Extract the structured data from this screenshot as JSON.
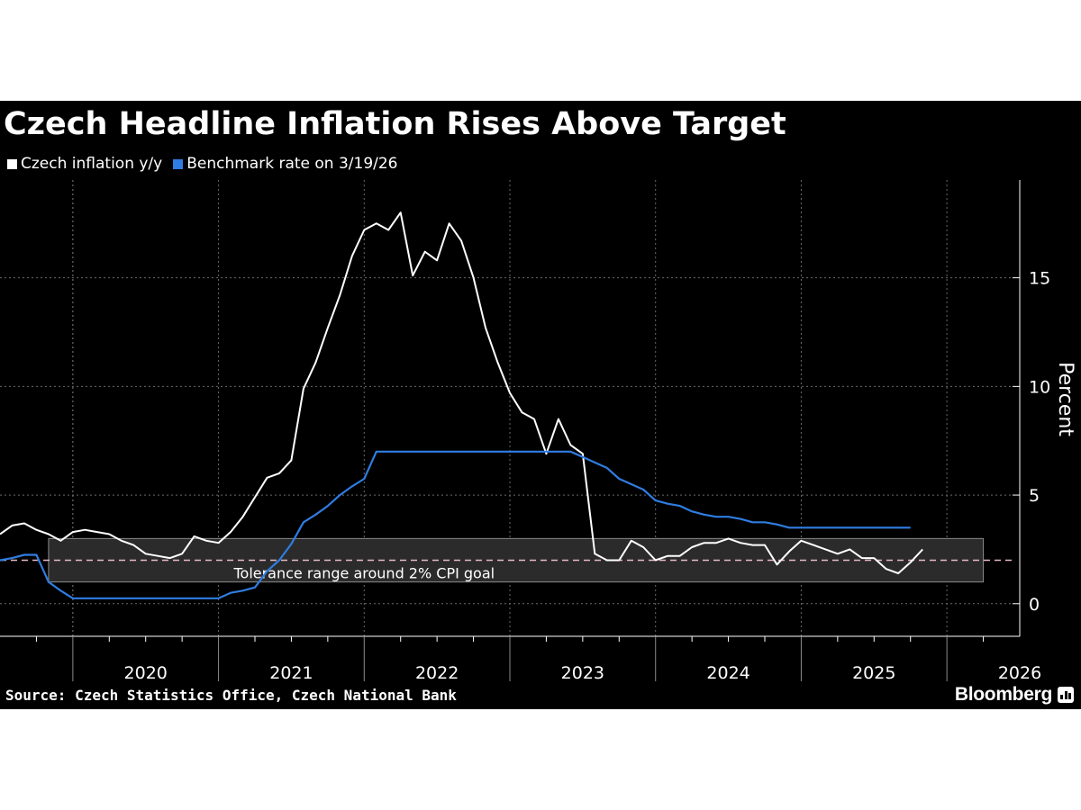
{
  "header": {
    "title": "Czech Headline Inflation Rises Above Target"
  },
  "footer": {
    "source": "Source: Czech Statistics Office, Czech National Bank",
    "brand": "Bloomberg",
    "brand_icon": "bloomberg-chart-icon"
  },
  "colors": {
    "background": "#000000",
    "inflation": "#ffffff",
    "benchmark": "#2f7de1",
    "band_fill": "#2b2b2b",
    "band_border": "#8a8a8a",
    "target_line": "#e6b8c4",
    "grid": "#6a6a6a"
  },
  "chart_data": {
    "type": "line",
    "title": "Czech Headline Inflation Rises Above Target",
    "ylabel": "Percent",
    "xlabel": "",
    "ylim": [
      -1.5,
      19.5
    ],
    "xlim": [
      "2019-07",
      "2026-07"
    ],
    "y_ticks": [
      0,
      5,
      10,
      15
    ],
    "x_tick_labels": [
      "2020",
      "2021",
      "2022",
      "2023",
      "2024",
      "2025",
      "2026"
    ],
    "grid": true,
    "legend_position": "top-left",
    "series": [
      {
        "name": "Czech inflation y/y",
        "start": "2019-07",
        "frequency": "monthly",
        "values": [
          3.2,
          3.6,
          3.7,
          3.4,
          3.2,
          2.9,
          3.3,
          3.4,
          3.3,
          3.2,
          2.9,
          2.7,
          2.3,
          2.2,
          2.1,
          2.3,
          3.1,
          2.9,
          2.8,
          3.3,
          4.0,
          4.9,
          5.8,
          6.0,
          6.6,
          9.9,
          11.1,
          12.7,
          14.2,
          16.0,
          17.2,
          17.5,
          17.2,
          18.0,
          15.1,
          16.2,
          15.8,
          17.5,
          16.7,
          15.0,
          12.7,
          11.1,
          9.7,
          8.8,
          8.5,
          6.9,
          8.5,
          7.3,
          6.9,
          2.3,
          2.0,
          2.0,
          2.9,
          2.6,
          2.0,
          2.2,
          2.2,
          2.6,
          2.8,
          2.8,
          3.0,
          2.8,
          2.7,
          2.7,
          1.8,
          2.4,
          2.9,
          2.7,
          2.5,
          2.3,
          2.5,
          2.1,
          2.1,
          1.6,
          1.4,
          1.9,
          2.5
        ]
      },
      {
        "name": "Benchmark rate on 3/19/26",
        "start": "2019-07",
        "frequency": "monthly",
        "values": [
          2.0,
          2.1,
          2.25,
          2.25,
          1.0,
          0.6,
          0.25,
          0.25,
          0.25,
          0.25,
          0.25,
          0.25,
          0.25,
          0.25,
          0.25,
          0.25,
          0.25,
          0.25,
          0.25,
          0.5,
          0.6,
          0.75,
          1.5,
          2.0,
          2.75,
          3.75,
          4.1,
          4.5,
          5.0,
          5.4,
          5.75,
          7.0,
          7.0,
          7.0,
          7.0,
          7.0,
          7.0,
          7.0,
          7.0,
          7.0,
          7.0,
          7.0,
          7.0,
          7.0,
          7.0,
          7.0,
          7.0,
          7.0,
          6.75,
          6.5,
          6.25,
          5.75,
          5.5,
          5.25,
          4.75,
          4.6,
          4.5,
          4.25,
          4.1,
          4.0,
          4.0,
          3.9,
          3.75,
          3.75,
          3.65,
          3.5,
          3.5,
          3.5,
          3.5,
          3.5,
          3.5,
          3.5,
          3.5,
          3.5,
          3.5,
          3.5
        ]
      }
    ],
    "band": {
      "label": "Tolerance range around 2% CPI goal",
      "low": 1,
      "high": 3,
      "target": 2
    }
  }
}
